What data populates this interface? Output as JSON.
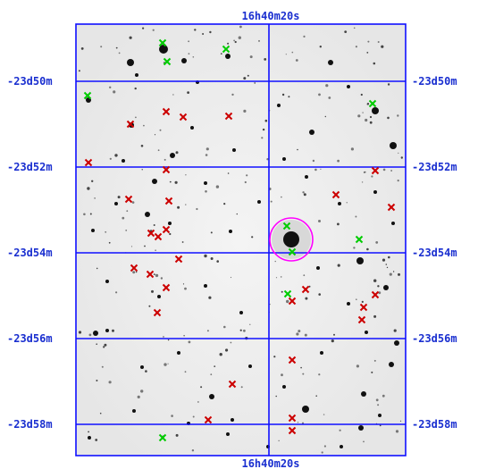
{
  "labels": {
    "ra_top": "16h40m20s",
    "ra_bottom": "16h40m20s",
    "dec": [
      "-23d50m",
      "-23d52m",
      "-23d54m",
      "-23d56m",
      "-23d58m"
    ]
  },
  "colors": {
    "grid": "#1010ff",
    "label": "#1a2fd0",
    "green_marker": "#00cc00",
    "red_marker": "#cc0000",
    "target_circle": "#ff00ff"
  },
  "markers": {
    "green_count": 10,
    "red_count": 29
  }
}
